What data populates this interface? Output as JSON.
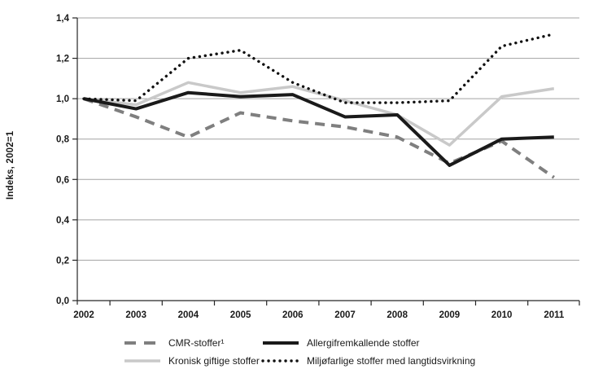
{
  "chart_data": {
    "type": "line",
    "title": "",
    "xlabel": "",
    "ylabel": "Indeks, 2002=1",
    "ylim": [
      0,
      1.4
    ],
    "ytick_step": 0.2,
    "ytick_labels": [
      "0,0",
      "0,2",
      "0,4",
      "0,6",
      "0,8",
      "1,0",
      "1,2",
      "1,4"
    ],
    "grid": true,
    "legend_position": "bottom",
    "categories": [
      "2002",
      "2003",
      "2004",
      "2005",
      "2006",
      "2007",
      "2008",
      "2009",
      "2010",
      "2011"
    ],
    "series": [
      {
        "id": "cmr",
        "name": "CMR-stoffer¹",
        "line": {
          "style": "dashed",
          "color": "#7f7f7f",
          "width": 4
        },
        "z": 2,
        "values": [
          1.0,
          0.91,
          0.81,
          0.93,
          0.89,
          0.86,
          0.81,
          0.68,
          0.79,
          0.61
        ]
      },
      {
        "id": "allergi",
        "name": "Allergifremkallende stoffer",
        "line": {
          "style": "solid",
          "color": "#1a1a1a",
          "width": 4
        },
        "z": 3,
        "values": [
          1.0,
          0.95,
          1.03,
          1.01,
          1.02,
          0.91,
          0.92,
          0.67,
          0.8,
          0.81
        ]
      },
      {
        "id": "kronisk",
        "name": "Kronisk giftige stoffer",
        "line": {
          "style": "solid",
          "color": "#c9c9c9",
          "width": 3.5
        },
        "z": 1,
        "values": [
          1.0,
          0.97,
          1.08,
          1.03,
          1.06,
          0.99,
          0.92,
          0.77,
          1.01,
          1.05
        ]
      },
      {
        "id": "miljo",
        "name": "Miljøfarlige stoffer med langtidsvirkning",
        "line": {
          "style": "dotted",
          "color": "#111111",
          "width": 3.4
        },
        "z": 4,
        "values": [
          1.0,
          0.99,
          1.2,
          1.24,
          1.08,
          0.98,
          0.98,
          0.99,
          1.26,
          1.32
        ]
      }
    ],
    "axis_color": "#262626",
    "grid_color": "#a3a3a3"
  }
}
